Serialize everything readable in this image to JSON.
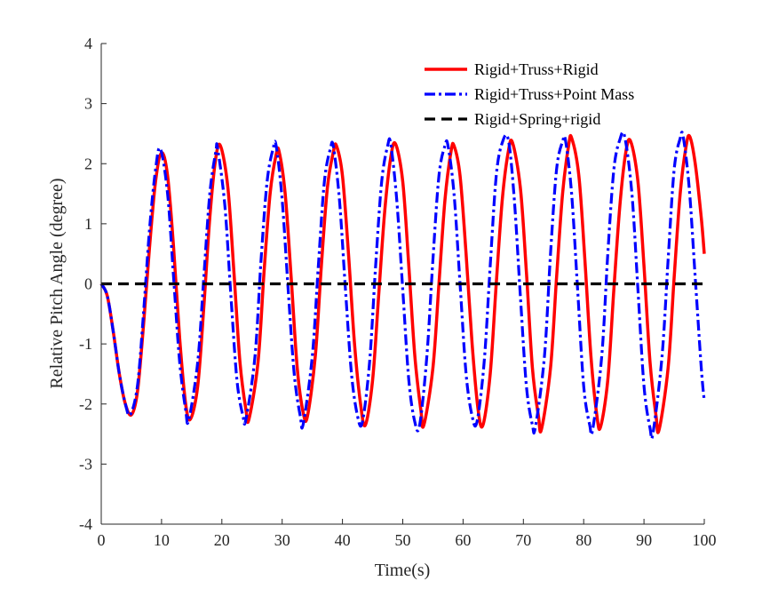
{
  "chart_data": {
    "type": "line",
    "title": "",
    "xlabel": "Time(s)",
    "ylabel": "Relative Pitch Angle (degree)",
    "xlim": [
      0,
      100
    ],
    "ylim": [
      -4,
      4
    ],
    "xticks": [
      0,
      10,
      20,
      30,
      40,
      50,
      60,
      70,
      80,
      90,
      100
    ],
    "yticks": [
      -4,
      -3,
      -2,
      -1,
      0,
      1,
      2,
      3,
      4
    ],
    "grid": false,
    "legend_position": "top-right",
    "series": [
      {
        "name": "Rigid+Truss+Rigid",
        "color": "#ff0000",
        "style": "solid",
        "points": [
          [
            0,
            0
          ],
          [
            1,
            -0.2
          ],
          [
            2,
            -0.8
          ],
          [
            3,
            -1.5
          ],
          [
            4,
            -2.0
          ],
          [
            5,
            -2.18
          ],
          [
            6,
            -1.8
          ],
          [
            7,
            -0.7
          ],
          [
            8,
            0.6
          ],
          [
            9,
            1.7
          ],
          [
            10,
            2.18
          ],
          [
            11,
            1.8
          ],
          [
            12,
            0.6
          ],
          [
            13,
            -0.9
          ],
          [
            14,
            -2.0
          ],
          [
            14.8,
            -2.25
          ],
          [
            16,
            -1.7
          ],
          [
            17,
            -0.4
          ],
          [
            18,
            1.1
          ],
          [
            19,
            2.1
          ],
          [
            19.8,
            2.29
          ],
          [
            21,
            1.6
          ],
          [
            22,
            0.2
          ],
          [
            23,
            -1.3
          ],
          [
            24,
            -2.1
          ],
          [
            24.5,
            -2.25
          ],
          [
            26,
            -1.3
          ],
          [
            27,
            0.2
          ],
          [
            28,
            1.5
          ],
          [
            29,
            2.15
          ],
          [
            29.5,
            2.2
          ],
          [
            30.5,
            1.5
          ],
          [
            31.5,
            0.1
          ],
          [
            32.5,
            -1.4
          ],
          [
            33.5,
            -2.15
          ],
          [
            34.2,
            -2.2
          ],
          [
            35.5,
            -1.2
          ],
          [
            36.5,
            0.3
          ],
          [
            37.5,
            1.6
          ],
          [
            38.5,
            2.2
          ],
          [
            39,
            2.3
          ],
          [
            40,
            1.8
          ],
          [
            41,
            0.5
          ],
          [
            42,
            -1.0
          ],
          [
            43,
            -2.0
          ],
          [
            43.8,
            -2.35
          ],
          [
            45,
            -1.6
          ],
          [
            46,
            -0.2
          ],
          [
            47,
            1.2
          ],
          [
            48,
            2.1
          ],
          [
            48.8,
            2.33
          ],
          [
            50,
            1.7
          ],
          [
            51,
            0.3
          ],
          [
            52,
            -1.2
          ],
          [
            53,
            -2.1
          ],
          [
            53.5,
            -2.35
          ],
          [
            55,
            -1.4
          ],
          [
            56,
            0.0
          ],
          [
            57,
            1.4
          ],
          [
            58,
            2.2
          ],
          [
            58.5,
            2.3
          ],
          [
            59.5,
            1.8
          ],
          [
            60.5,
            0.5
          ],
          [
            61.5,
            -1.0
          ],
          [
            62.5,
            -2.1
          ],
          [
            63.3,
            -2.35
          ],
          [
            64.5,
            -1.5
          ],
          [
            65.5,
            0.0
          ],
          [
            66.5,
            1.4
          ],
          [
            67.5,
            2.2
          ],
          [
            68.2,
            2.35
          ],
          [
            69.5,
            1.6
          ],
          [
            70.5,
            0.2
          ],
          [
            71.5,
            -1.4
          ],
          [
            72.5,
            -2.2
          ],
          [
            73,
            -2.42
          ],
          [
            74.5,
            -1.4
          ],
          [
            75.5,
            0.1
          ],
          [
            76.5,
            1.5
          ],
          [
            77.5,
            2.3
          ],
          [
            78,
            2.43
          ],
          [
            79.2,
            1.8
          ],
          [
            80.2,
            0.4
          ],
          [
            81.2,
            -1.2
          ],
          [
            82.2,
            -2.2
          ],
          [
            82.8,
            -2.38
          ],
          [
            84,
            -1.6
          ],
          [
            85,
            -0.1
          ],
          [
            86,
            1.3
          ],
          [
            87,
            2.2
          ],
          [
            87.8,
            2.37
          ],
          [
            89,
            1.7
          ],
          [
            90,
            0.3
          ],
          [
            91,
            -1.3
          ],
          [
            92,
            -2.2
          ],
          [
            92.5,
            -2.43
          ],
          [
            94,
            -1.4
          ],
          [
            95,
            0.1
          ],
          [
            96,
            1.5
          ],
          [
            97,
            2.3
          ],
          [
            97.6,
            2.45
          ],
          [
            98.5,
            2.0
          ],
          [
            99.5,
            1.1
          ],
          [
            100,
            0.5
          ]
        ]
      },
      {
        "name": "Rigid+Truss+Point Mass",
        "color": "#0000ff",
        "style": "dash-dot",
        "points": [
          [
            0,
            0
          ],
          [
            1,
            -0.2
          ],
          [
            2,
            -0.8
          ],
          [
            3,
            -1.5
          ],
          [
            4,
            -2.0
          ],
          [
            4.8,
            -2.18
          ],
          [
            6,
            -1.7
          ],
          [
            7,
            -0.5
          ],
          [
            8,
            0.9
          ],
          [
            9,
            1.9
          ],
          [
            9.8,
            2.25
          ],
          [
            11,
            1.5
          ],
          [
            12,
            0.1
          ],
          [
            13,
            -1.3
          ],
          [
            14,
            -2.1
          ],
          [
            14.5,
            -2.27
          ],
          [
            16,
            -1.3
          ],
          [
            17,
            0.1
          ],
          [
            18,
            1.5
          ],
          [
            19,
            2.2
          ],
          [
            19.3,
            2.25
          ],
          [
            20.5,
            1.3
          ],
          [
            21.5,
            -0.2
          ],
          [
            22.5,
            -1.6
          ],
          [
            23.5,
            -2.2
          ],
          [
            24,
            -2.25
          ],
          [
            25.5,
            -1.2
          ],
          [
            26.5,
            0.4
          ],
          [
            27.5,
            1.7
          ],
          [
            28.5,
            2.25
          ],
          [
            29,
            2.3
          ],
          [
            30,
            1.4
          ],
          [
            31,
            -0.1
          ],
          [
            32,
            -1.5
          ],
          [
            33,
            -2.2
          ],
          [
            33.5,
            -2.33
          ],
          [
            35,
            -1.2
          ],
          [
            36,
            0.3
          ],
          [
            37,
            1.7
          ],
          [
            38,
            2.25
          ],
          [
            38.5,
            2.28
          ],
          [
            39.5,
            1.4
          ],
          [
            40.5,
            -0.1
          ],
          [
            41.5,
            -1.5
          ],
          [
            42.5,
            -2.2
          ],
          [
            43.3,
            -2.3
          ],
          [
            44.5,
            -1.3
          ],
          [
            45.5,
            0.3
          ],
          [
            46.5,
            1.7
          ],
          [
            47.5,
            2.3
          ],
          [
            48,
            2.33
          ],
          [
            49,
            1.4
          ],
          [
            50,
            -0.1
          ],
          [
            51,
            -1.6
          ],
          [
            52,
            -2.3
          ],
          [
            52.8,
            -2.35
          ],
          [
            54,
            -1.2
          ],
          [
            55,
            0.4
          ],
          [
            56,
            1.8
          ],
          [
            57,
            2.3
          ],
          [
            57.5,
            2.3
          ],
          [
            58.5,
            1.5
          ],
          [
            59.5,
            0.0
          ],
          [
            60.5,
            -1.5
          ],
          [
            61.5,
            -2.2
          ],
          [
            62.3,
            -2.3
          ],
          [
            63.5,
            -1.3
          ],
          [
            64.5,
            0.3
          ],
          [
            65.5,
            1.8
          ],
          [
            66.5,
            2.35
          ],
          [
            67.5,
            2.4
          ],
          [
            68.5,
            1.4
          ],
          [
            69.5,
            -0.2
          ],
          [
            70.5,
            -1.7
          ],
          [
            71.5,
            -2.35
          ],
          [
            72,
            -2.38
          ],
          [
            73.5,
            -1.2
          ],
          [
            74.5,
            0.5
          ],
          [
            75.5,
            1.9
          ],
          [
            76.5,
            2.37
          ],
          [
            77,
            2.38
          ],
          [
            78,
            1.5
          ],
          [
            79,
            -0.1
          ],
          [
            80,
            -1.7
          ],
          [
            81,
            -2.35
          ],
          [
            81.5,
            -2.42
          ],
          [
            83,
            -1.2
          ],
          [
            84,
            0.5
          ],
          [
            85,
            1.9
          ],
          [
            86,
            2.4
          ],
          [
            86.8,
            2.45
          ],
          [
            88,
            1.5
          ],
          [
            89,
            -0.1
          ],
          [
            90,
            -1.7
          ],
          [
            91,
            -2.4
          ],
          [
            91.5,
            -2.48
          ],
          [
            93,
            -1.2
          ],
          [
            94,
            0.4
          ],
          [
            95,
            1.9
          ],
          [
            96,
            2.42
          ],
          [
            96.5,
            2.45
          ],
          [
            97.5,
            1.6
          ],
          [
            98.5,
            0.1
          ],
          [
            99.5,
            -1.4
          ],
          [
            100,
            -1.95
          ]
        ]
      },
      {
        "name": "Rigid+Spring+rigid",
        "color": "#000000",
        "style": "dashed",
        "points": [
          [
            0,
            0
          ],
          [
            100,
            0
          ]
        ]
      }
    ]
  }
}
